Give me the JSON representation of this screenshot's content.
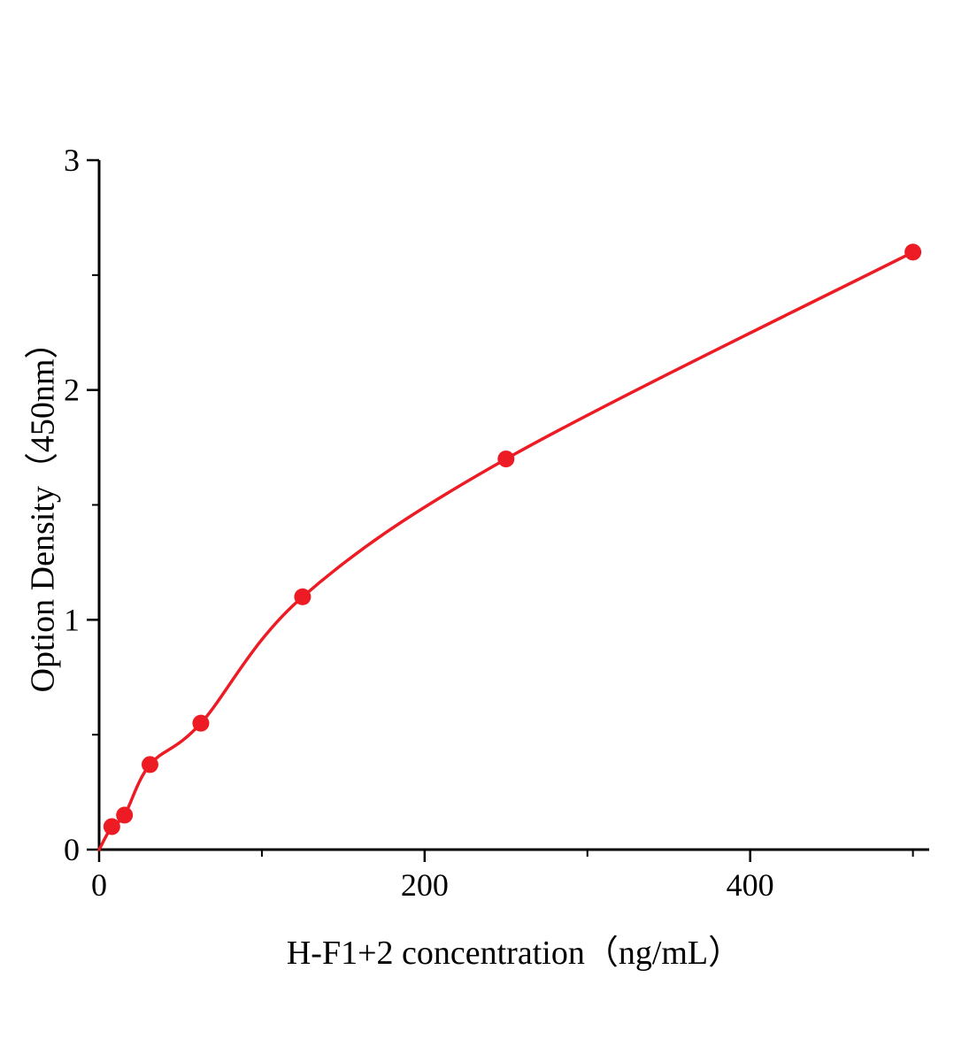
{
  "chart_data": {
    "type": "scatter",
    "title": "",
    "xlabel": "H-F1+2 concentration（ng/mL）",
    "ylabel": "Option Density（450nm）",
    "x": [
      7.8,
      15.6,
      31.25,
      62.5,
      125,
      250,
      500
    ],
    "y": [
      0.1,
      0.15,
      0.37,
      0.55,
      1.1,
      1.7,
      2.6
    ],
    "curve_start_x": 0,
    "curve_start_y": 0,
    "xlim": [
      0,
      510
    ],
    "ylim": [
      0,
      3
    ],
    "x_major_ticks": [
      0,
      200,
      400
    ],
    "x_minor_ticks": [
      100,
      300,
      500
    ],
    "y_major_ticks": [
      0,
      1,
      2,
      3
    ],
    "y_minor_ticks": [
      0.5,
      1.5,
      2.5
    ],
    "line_color": "#ed1c24",
    "marker_color": "#ed1c24",
    "axis_color": "#000000",
    "grid": false,
    "legend": null
  }
}
